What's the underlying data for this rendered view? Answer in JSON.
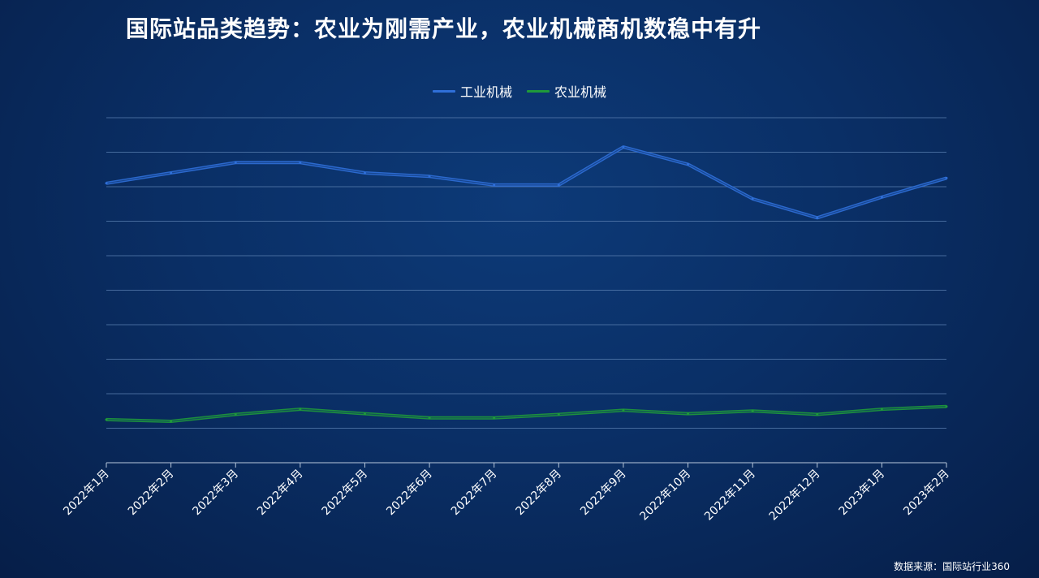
{
  "title": "国际站品类趋势：农业为刚需产业，农业机械商机数稳中有升",
  "source": "数据来源：国际站行业360",
  "colors": {
    "industrial": "#2f6fd8",
    "agricultural": "#1f9a3a"
  },
  "chart_data": {
    "type": "line",
    "title": "",
    "xlabel": "",
    "ylabel": "",
    "y_tick_labels_shown": false,
    "ylim": [
      0,
      100
    ],
    "grid": true,
    "legend_position": "top-center",
    "categories": [
      "2022年1月",
      "2022年2月",
      "2022年3月",
      "2022年4月",
      "2022年5月",
      "2022年6月",
      "2022年7月",
      "2022年8月",
      "2022年9月",
      "2022年10月",
      "2022年11月",
      "2022年12月",
      "2023年1月",
      "2023年2月"
    ],
    "series": [
      {
        "name": "工业机械",
        "values": [
          81,
          84,
          87,
          87,
          84,
          83,
          80.5,
          80.5,
          91.5,
          86.5,
          76.5,
          71,
          77,
          82.5
        ]
      },
      {
        "name": "农业机械",
        "values": [
          12.5,
          12,
          14,
          15.5,
          14.2,
          13,
          13,
          14,
          15.2,
          14.2,
          15,
          14,
          15.5,
          16.3
        ]
      }
    ]
  }
}
